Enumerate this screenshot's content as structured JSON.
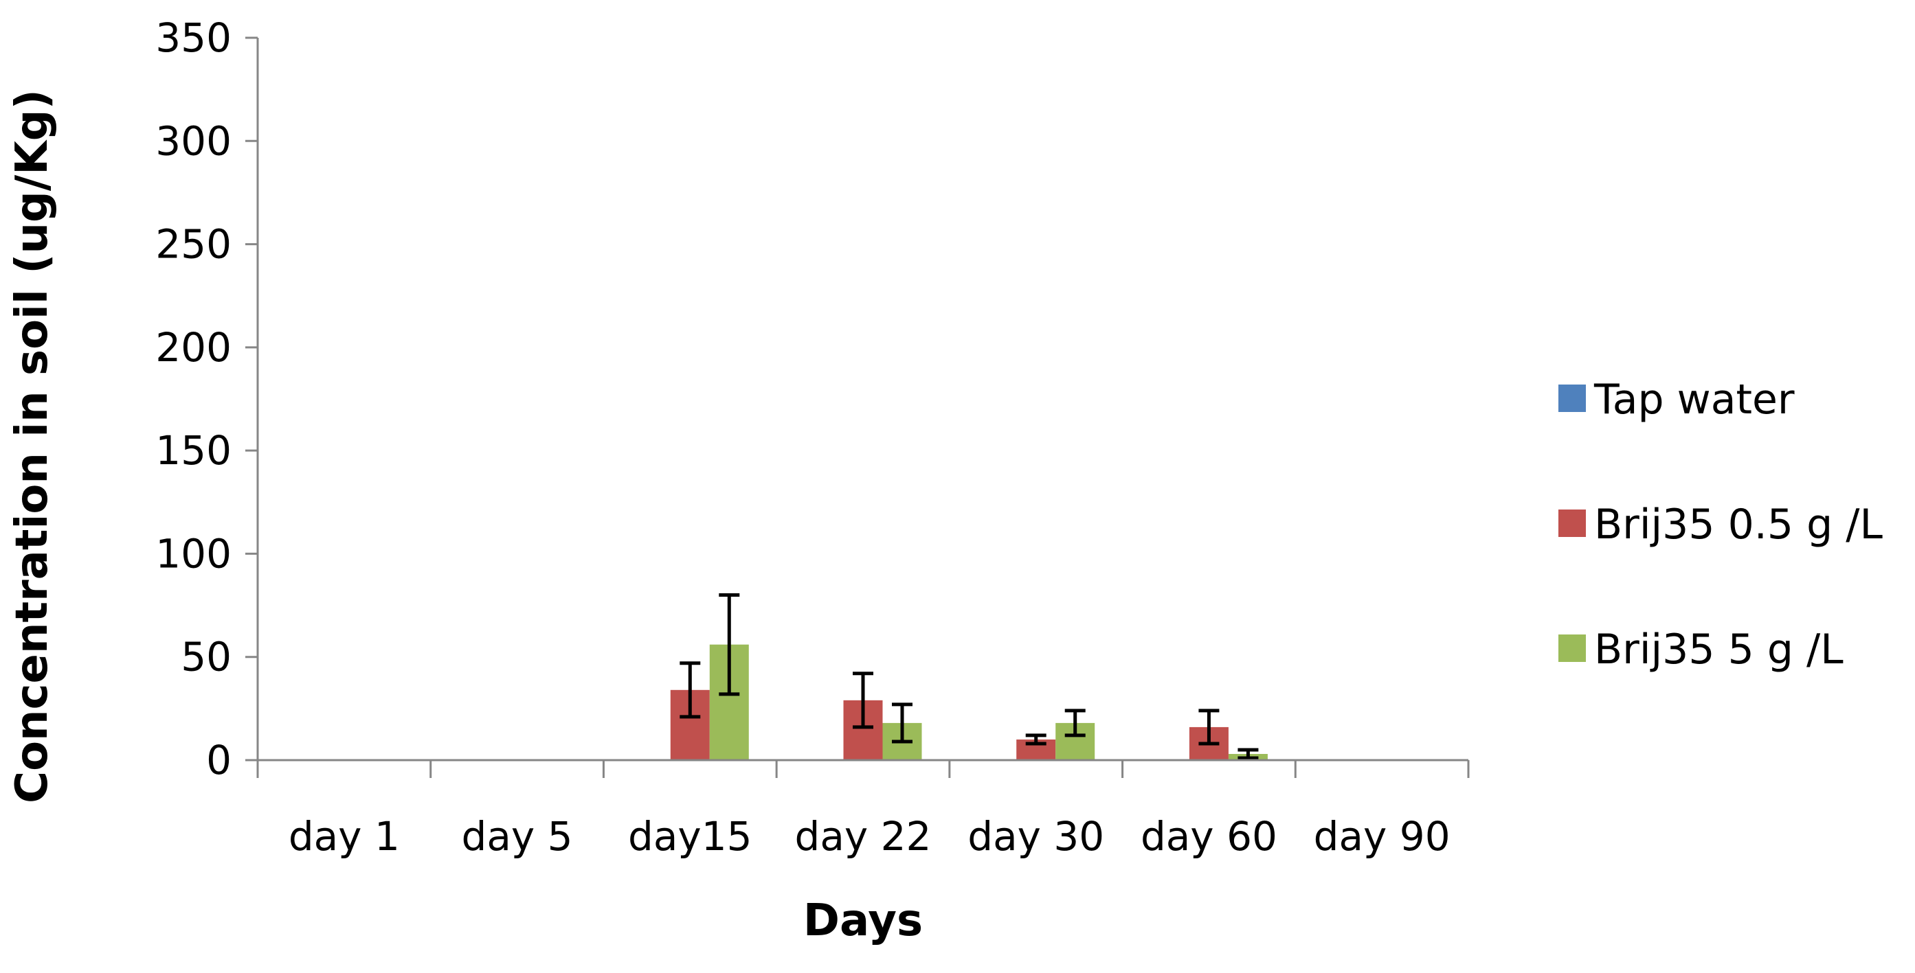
{
  "chart_data": {
    "type": "bar",
    "title": "",
    "xlabel": "Days",
    "ylabel": "Concentration in soil (ug/Kg)",
    "ylim": [
      0,
      350
    ],
    "yticks": [
      "0",
      "50",
      "100",
      "150",
      "200",
      "250",
      "300",
      "350"
    ],
    "grid": false,
    "legend_position": "right",
    "categories": [
      "day 1",
      "day 5",
      "day15",
      "day 22",
      "day 30",
      "day 60",
      "day 90"
    ],
    "series": [
      {
        "name": "Tap water",
        "color": "#4f81bd",
        "values": [
          0,
          0,
          0,
          0,
          0,
          0,
          0
        ],
        "errors": [
          0,
          0,
          0,
          0,
          0,
          0,
          0
        ]
      },
      {
        "name": "Brij35 0.5 g /L",
        "color": "#c0504d",
        "values": [
          0,
          0,
          34,
          29,
          10,
          16,
          0
        ],
        "errors": [
          0,
          0,
          13,
          13,
          2,
          8,
          0
        ]
      },
      {
        "name": "Brij35 5 g /L",
        "color": "#9bbb59",
        "values": [
          0,
          0,
          56,
          18,
          18,
          3,
          0
        ],
        "errors": [
          0,
          0,
          24,
          9,
          6,
          2,
          0
        ]
      }
    ]
  }
}
